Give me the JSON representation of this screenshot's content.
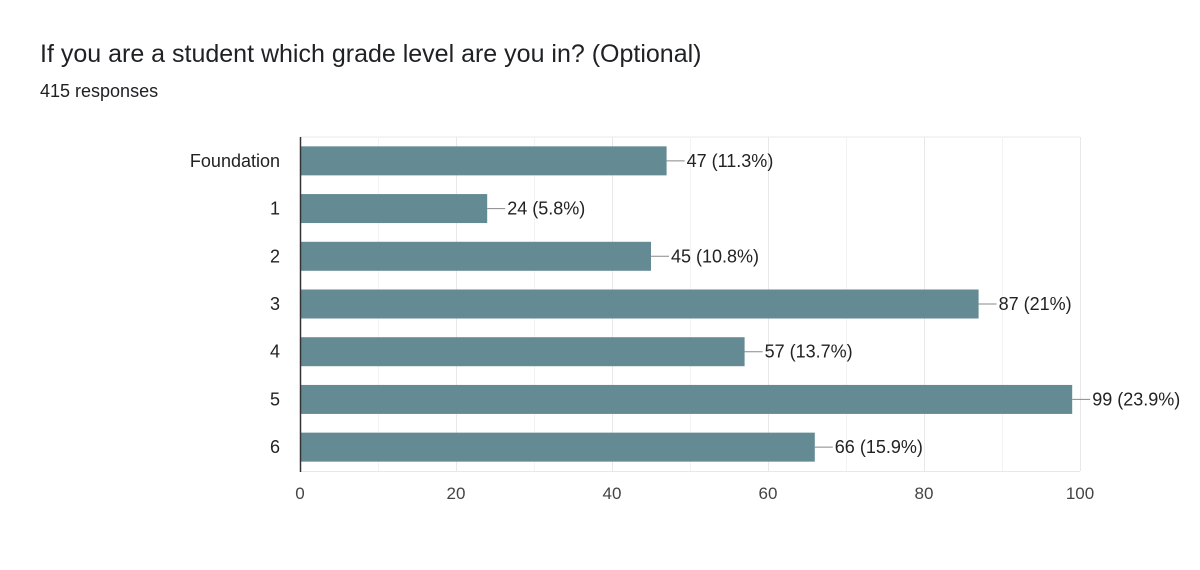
{
  "form": {
    "question": "If you are a student which grade level are you in? (Optional)",
    "responses": "415 responses"
  },
  "colors": {
    "bar": "#648a94",
    "grid": "#e8e8e8",
    "axis": "#333333",
    "leader": "#888888"
  },
  "chart_data": {
    "type": "bar",
    "orientation": "horizontal",
    "title": "If you are a student which grade level are you in? (Optional)",
    "subtitle": "415 responses",
    "categories": [
      "Foundation",
      "1",
      "2",
      "3",
      "4",
      "5",
      "6"
    ],
    "values": [
      47,
      24,
      45,
      87,
      57,
      99,
      66
    ],
    "data_labels": [
      "47 (11.3%)",
      "24 (5.8%)",
      "45 (10.8%)",
      "87 (21%)",
      "57 (13.7%)",
      "99 (23.9%)",
      "66 (15.9%)"
    ],
    "x_ticks": [
      "0",
      "20",
      "40",
      "60",
      "80",
      "100"
    ],
    "xlim": [
      0,
      100
    ],
    "xlabel": "",
    "ylabel": "",
    "grid": true,
    "legend": "none"
  }
}
